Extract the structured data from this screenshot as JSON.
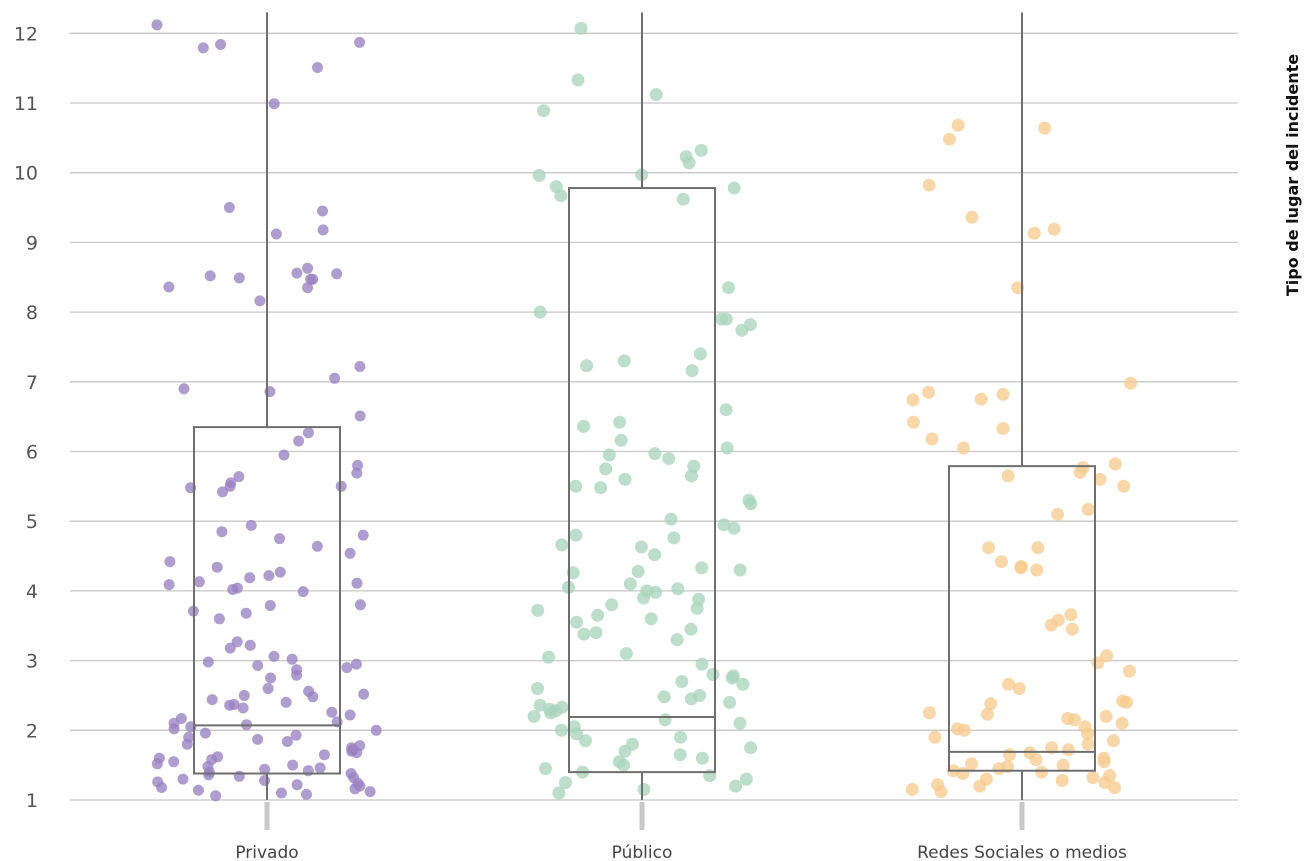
{
  "chart_data": {
    "type": "box-strip",
    "title": "",
    "xlabel": "",
    "ylabel": "",
    "legend_title": "Tipo de lugar del incidente",
    "legend_placement": "right",
    "ylim": [
      0.9,
      12.3
    ],
    "yticks": [
      1,
      2,
      3,
      4,
      5,
      6,
      7,
      8,
      9,
      10,
      11,
      12
    ],
    "grid": true,
    "categories": [
      "Privado",
      "Público",
      "Redes Sociales o medios"
    ],
    "colors": [
      "#9a82c1",
      "#a9d5bb",
      "#f7cc8f"
    ],
    "boxes": [
      {
        "category": "Privado",
        "q1": 1.38,
        "median": 2.07,
        "q3": 6.35,
        "whisker_low": 1.0,
        "whisker_high": 12.3
      },
      {
        "category": "Público",
        "q1": 1.4,
        "median": 2.19,
        "q3": 9.78,
        "whisker_low": 1.0,
        "whisker_high": 12.3
      },
      {
        "category": "Redes Sociales o medios",
        "q1": 1.42,
        "median": 1.69,
        "q3": 5.79,
        "whisker_low": 1.0,
        "whisker_high": 12.3
      }
    ],
    "points": [
      {
        "category": "Privado",
        "values": [
          12.12,
          11.87,
          11.84,
          11.79,
          11.51,
          10.99,
          9.5,
          9.45,
          9.18,
          9.12,
          8.63,
          8.56,
          8.55,
          8.52,
          8.49,
          8.47,
          8.47,
          8.36,
          8.35,
          8.16,
          7.22,
          7.05,
          6.9,
          6.86,
          6.51,
          6.27,
          6.15,
          5.95,
          5.8,
          5.69,
          5.64,
          5.55,
          5.5,
          5.5,
          5.48,
          5.42,
          4.94,
          4.85,
          4.8,
          4.75,
          4.64,
          4.54,
          4.42,
          4.34,
          4.27,
          4.22,
          4.19,
          4.13,
          4.11,
          4.09,
          4.04,
          4.02,
          3.99,
          3.8,
          3.79,
          3.71,
          3.68,
          3.6,
          3.27,
          3.22,
          3.18,
          3.06,
          3.02,
          2.98,
          2.95,
          2.93,
          2.9,
          2.87,
          2.79,
          2.75,
          2.6,
          2.56,
          2.52,
          2.5,
          2.48,
          2.44,
          2.4,
          2.37,
          2.36,
          2.32,
          2.26,
          2.22,
          2.17,
          2.12,
          2.1,
          2.08,
          2.05,
          2.02,
          2.0,
          1.96,
          1.93,
          1.9,
          1.87,
          1.84,
          1.8,
          1.78,
          1.75,
          1.72,
          1.7,
          1.68,
          1.65,
          1.62,
          1.6,
          1.58,
          1.55,
          1.52,
          1.5,
          1.48,
          1.46,
          1.44,
          1.42,
          1.4,
          1.38,
          1.36,
          1.34,
          1.32,
          1.3,
          1.28,
          1.26,
          1.24,
          1.22,
          1.2,
          1.18,
          1.16,
          1.14,
          1.12,
          1.1,
          1.08,
          1.06
        ]
      },
      {
        "category": "Público",
        "values": [
          12.07,
          11.33,
          11.12,
          10.89,
          10.32,
          10.23,
          10.14,
          9.97,
          9.96,
          9.8,
          9.78,
          9.67,
          9.62,
          8.35,
          8.0,
          7.9,
          7.9,
          7.82,
          7.74,
          7.4,
          7.3,
          7.23,
          7.16,
          6.6,
          6.42,
          6.36,
          6.16,
          6.05,
          5.97,
          5.95,
          5.9,
          5.79,
          5.75,
          5.65,
          5.6,
          5.5,
          5.48,
          5.3,
          5.25,
          5.03,
          4.95,
          4.9,
          4.8,
          4.76,
          4.66,
          4.63,
          4.52,
          4.33,
          4.3,
          4.28,
          4.26,
          4.1,
          4.05,
          4.03,
          4.0,
          3.98,
          3.9,
          3.88,
          3.8,
          3.75,
          3.72,
          3.65,
          3.6,
          3.55,
          3.45,
          3.4,
          3.38,
          3.3,
          3.1,
          3.05,
          2.95,
          2.8,
          2.78,
          2.75,
          2.7,
          2.66,
          2.6,
          2.5,
          2.48,
          2.45,
          2.4,
          2.36,
          2.33,
          2.3,
          2.28,
          2.25,
          2.2,
          2.15,
          2.1,
          2.05,
          2.0,
          1.95,
          1.9,
          1.85,
          1.8,
          1.75,
          1.7,
          1.65,
          1.6,
          1.55,
          1.5,
          1.45,
          1.4,
          1.35,
          1.3,
          1.25,
          1.2,
          1.15,
          1.1
        ]
      },
      {
        "category": "Redes Sociales o medios",
        "values": [
          10.68,
          10.64,
          10.48,
          9.82,
          9.36,
          9.19,
          9.13,
          8.35,
          6.98,
          6.85,
          6.82,
          6.75,
          6.74,
          6.42,
          6.33,
          6.18,
          6.05,
          5.82,
          5.77,
          5.7,
          5.65,
          5.6,
          5.5,
          5.17,
          5.1,
          4.62,
          4.62,
          4.42,
          4.35,
          4.33,
          4.3,
          3.66,
          3.58,
          3.51,
          3.45,
          3.07,
          2.97,
          2.85,
          2.66,
          2.6,
          2.42,
          2.4,
          2.38,
          2.25,
          2.23,
          2.2,
          2.17,
          2.15,
          2.1,
          2.05,
          2.02,
          2.0,
          1.95,
          1.9,
          1.85,
          1.8,
          1.75,
          1.72,
          1.68,
          1.65,
          1.6,
          1.58,
          1.55,
          1.52,
          1.5,
          1.48,
          1.45,
          1.42,
          1.4,
          1.38,
          1.35,
          1.32,
          1.3,
          1.28,
          1.25,
          1.22,
          1.2,
          1.18,
          1.15,
          1.12
        ]
      }
    ]
  }
}
